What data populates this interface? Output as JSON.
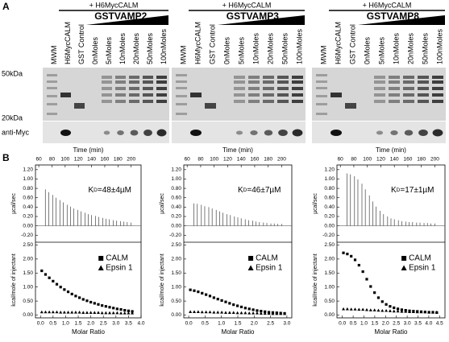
{
  "panel_a": {
    "label": "A",
    "markers": [
      "50kDa",
      "20kDa"
    ],
    "blot_label": "anti-Myc",
    "gels": [
      {
        "treatment": "+ H6MycCALM",
        "protein": "GSTVAMP2",
        "lanes": [
          "MWM",
          "H6MycCALM",
          "GST Control",
          "0nMoles",
          "5nMoles",
          "10nMoles",
          "20nMoles",
          "50nMoles",
          "100nMoles"
        ]
      },
      {
        "treatment": "+ H6MycCALM",
        "protein": "GSTVAMP3",
        "lanes": [
          "MWM",
          "H6MycCALM",
          "GST Control",
          "0nMoles",
          "5nMoles",
          "10nMoles",
          "20nMoles",
          "50nMoles",
          "100nMoles"
        ]
      },
      {
        "treatment": "+ H6MycCALM",
        "protein": "GSTVAMP8",
        "lanes": [
          "MWM",
          "H6MycCALM",
          "GST Control",
          "0nMoles",
          "5nMoles",
          "10nMoles",
          "20nMoles",
          "50nMoles",
          "100nMoles"
        ]
      }
    ]
  },
  "panel_b": {
    "label": "B",
    "plots": [
      {
        "top_axis_label": "Time (min)",
        "time_lim": [
          55,
          215
        ],
        "time_ticks": [
          60,
          80,
          100,
          120,
          140,
          160,
          180,
          200
        ],
        "upper_y_label": "µcal/sec",
        "upper_ylim": [
          -0.35,
          1.3
        ],
        "upper_yticks": [
          {
            "value": 1.2,
            "label": "1.20"
          },
          {
            "value": 1,
            "label": "1.00"
          },
          {
            "value": 0.8,
            "label": "0.80"
          },
          {
            "value": 0.6,
            "label": "0.60"
          },
          {
            "value": 0.4,
            "label": "0.40"
          },
          {
            "value": 0.2,
            "label": "0.20"
          },
          {
            "value": 0,
            "label": "0.00"
          },
          {
            "value": -0.2,
            "label": "-0.20"
          }
        ],
        "kd": {
          "symbol": "K",
          "subscript": "D",
          "value": "=48±4µM"
        },
        "injections": {
          "time": [
            70,
            75,
            81,
            86,
            92,
            97,
            103,
            108,
            113,
            119,
            124,
            130,
            135,
            140,
            146,
            151,
            157,
            162,
            167,
            173,
            178,
            184,
            189,
            194,
            200
          ],
          "heat": [
            0.78,
            0.72,
            0.66,
            0.6,
            0.55,
            0.5,
            0.45,
            0.41,
            0.37,
            0.34,
            0.31,
            0.28,
            0.25,
            0.23,
            0.21,
            0.19,
            0.17,
            0.15,
            0.14,
            0.12,
            0.11,
            0.1,
            0.09,
            0.08,
            0.07
          ]
        },
        "lower_y_label": "kcal/mole of injectant",
        "lower_ylim": [
          -0.1,
          2.6
        ],
        "lower_yticks": [
          {
            "value": 2.5,
            "label": "2.50"
          },
          {
            "value": 2,
            "label": "2.00"
          },
          {
            "value": 1.5,
            "label": "1.50"
          },
          {
            "value": 1,
            "label": "1.00"
          },
          {
            "value": 0.5,
            "label": "0.50"
          },
          {
            "value": 0,
            "label": "0.00"
          }
        ],
        "x_label": "Molar Ratio",
        "xlim": [
          -0.2,
          4.0
        ],
        "xticks": [
          {
            "value": 0,
            "label": "0.0"
          },
          0.5,
          {
            "value": 1,
            "label": "1.0"
          },
          1.5,
          {
            "value": 2,
            "label": "2.0"
          },
          2.5,
          {
            "value": 3,
            "label": "3.0"
          },
          3.5,
          {
            "value": 4,
            "label": "4.0"
          }
        ],
        "x": [
          0.05,
          0.2,
          0.35,
          0.5,
          0.65,
          0.8,
          0.95,
          1.1,
          1.25,
          1.4,
          1.55,
          1.7,
          1.85,
          2,
          2.15,
          2.3,
          2.45,
          2.6,
          2.75,
          2.9,
          3.05,
          3.2,
          3.35,
          3.5,
          3.65
        ],
        "series": [
          {
            "name": "CALM",
            "marker": "square",
            "values": [
              1.58,
              1.45,
              1.33,
              1.21,
              1.1,
              1.0,
              0.91,
              0.83,
              0.75,
              0.68,
              0.62,
              0.56,
              0.51,
              0.46,
              0.42,
              0.38,
              0.34,
              0.31,
              0.28,
              0.25,
              0.22,
              0.2,
              0.17,
              0.15,
              0.13
            ]
          },
          {
            "name": "Epsin 1",
            "marker": "triangle",
            "values": [
              0.11,
              0.11,
              0.11,
              0.11,
              0.11,
              0.1,
              0.1,
              0.1,
              0.1,
              0.1,
              0.1,
              0.09,
              0.09,
              0.09,
              0.09,
              0.09,
              0.08,
              0.08,
              0.08,
              0.08,
              0.08,
              0.07,
              0.07,
              0.07,
              0.07
            ]
          }
        ]
      },
      {
        "top_axis_label": "Time (min)",
        "time_lim": [
          55,
          215
        ],
        "time_ticks": [
          60,
          80,
          100,
          120,
          140,
          160,
          180,
          200
        ],
        "upper_y_label": "µcal/sec",
        "upper_ylim": [
          -0.35,
          1.3
        ],
        "upper_yticks": [
          {
            "value": 1.2,
            "label": "1.20"
          },
          {
            "value": 1,
            "label": "1.00"
          },
          {
            "value": 0.8,
            "label": "0.80"
          },
          {
            "value": 0.6,
            "label": "0.60"
          },
          {
            "value": 0.4,
            "label": "0.40"
          },
          {
            "value": 0.2,
            "label": "0.20"
          },
          {
            "value": 0,
            "label": "0.00"
          },
          {
            "value": -0.2,
            "label": "-0.20"
          }
        ],
        "kd": {
          "symbol": "K",
          "subscript": "D",
          "value": "=46±7µM"
        },
        "injections": {
          "time": [
            70,
            75,
            81,
            86,
            92,
            97,
            103,
            108,
            113,
            119,
            124,
            130,
            135,
            140,
            146,
            151,
            157,
            162,
            167,
            173,
            178,
            184,
            189,
            194,
            200
          ],
          "heat": [
            0.48,
            0.47,
            0.45,
            0.42,
            0.4,
            0.37,
            0.34,
            0.31,
            0.28,
            0.25,
            0.23,
            0.2,
            0.18,
            0.16,
            0.14,
            0.12,
            0.11,
            0.09,
            0.08,
            0.07,
            0.06,
            0.05,
            0.05,
            0.04,
            0.04
          ]
        },
        "lower_y_label": "kcal/mole of injectant",
        "lower_ylim": [
          -0.1,
          2.6
        ],
        "lower_yticks": [
          {
            "value": 2.5,
            "label": "2.50"
          },
          {
            "value": 2,
            "label": "2.00"
          },
          {
            "value": 1.5,
            "label": "1.50"
          },
          {
            "value": 1,
            "label": "1.00"
          },
          {
            "value": 0.5,
            "label": "0.50"
          },
          {
            "value": 0,
            "label": "0.00"
          }
        ],
        "x_label": "Molar Ratio",
        "xlim": [
          -0.15,
          3.15
        ],
        "xticks": [
          {
            "value": 0,
            "label": "0.0"
          },
          0.5,
          {
            "value": 1,
            "label": "1.0"
          },
          1.5,
          {
            "value": 2,
            "label": "2.0"
          },
          2.5,
          {
            "value": 3,
            "label": "3.0"
          }
        ],
        "x": [
          0.05,
          0.17,
          0.29,
          0.41,
          0.53,
          0.65,
          0.77,
          0.89,
          1.01,
          1.13,
          1.25,
          1.37,
          1.49,
          1.61,
          1.73,
          1.85,
          1.97,
          2.09,
          2.21,
          2.33,
          2.45,
          2.57,
          2.69,
          2.81,
          2.93
        ],
        "series": [
          {
            "name": "CALM",
            "marker": "square",
            "values": [
              0.9,
              0.87,
              0.83,
              0.78,
              0.73,
              0.68,
              0.62,
              0.57,
              0.52,
              0.47,
              0.42,
              0.37,
              0.33,
              0.29,
              0.25,
              0.22,
              0.19,
              0.16,
              0.14,
              0.12,
              0.1,
              0.09,
              0.08,
              0.07,
              0.06
            ]
          },
          {
            "name": "Epsin 1",
            "marker": "triangle",
            "values": [
              0.12,
              0.12,
              0.12,
              0.11,
              0.11,
              0.11,
              0.1,
              0.1,
              0.1,
              0.09,
              0.09,
              0.09,
              0.08,
              0.08,
              0.08,
              0.07,
              0.07,
              0.07,
              0.06,
              0.06,
              0.06,
              0.05,
              0.05,
              0.05,
              0.05
            ]
          }
        ]
      },
      {
        "top_axis_label": "Time (min)",
        "time_lim": [
          55,
          215
        ],
        "time_ticks": [
          60,
          80,
          100,
          120,
          140,
          160,
          180,
          200
        ],
        "upper_y_label": "µcal/sec",
        "upper_ylim": [
          -0.35,
          1.3
        ],
        "upper_yticks": [
          {
            "value": 1.2,
            "label": "1.20"
          },
          {
            "value": 1,
            "label": "1.00"
          },
          {
            "value": 0.8,
            "label": "0.80"
          },
          {
            "value": 0.6,
            "label": "0.60"
          },
          {
            "value": 0.4,
            "label": "0.40"
          },
          {
            "value": 0.2,
            "label": "0.20"
          },
          {
            "value": 0,
            "label": "0.00"
          },
          {
            "value": -0.2,
            "label": "-0.20"
          }
        ],
        "kd": {
          "symbol": "K",
          "subscript": "D",
          "value": "=17±1µM"
        },
        "injections": {
          "time": [
            70,
            75,
            81,
            86,
            92,
            97,
            103,
            108,
            113,
            119,
            124,
            130,
            135,
            140,
            146,
            151,
            157,
            162,
            167,
            173,
            178,
            184,
            189,
            194,
            200
          ],
          "heat": [
            1.12,
            1.1,
            1.06,
            0.99,
            0.9,
            0.78,
            0.65,
            0.52,
            0.41,
            0.32,
            0.25,
            0.2,
            0.16,
            0.14,
            0.12,
            0.1,
            0.09,
            0.08,
            0.08,
            0.07,
            0.07,
            0.06,
            0.06,
            0.05,
            0.05
          ]
        },
        "lower_y_label": "kcal/mole of injectant",
        "lower_ylim": [
          -0.1,
          2.6
        ],
        "lower_yticks": [
          {
            "value": 2.5,
            "label": "2.50"
          },
          {
            "value": 2,
            "label": "2.00"
          },
          {
            "value": 1.5,
            "label": "1.50"
          },
          {
            "value": 1,
            "label": "1.00"
          },
          {
            "value": 0.5,
            "label": "0.50"
          },
          {
            "value": 0,
            "label": "0.00"
          }
        ],
        "x_label": "Molar Ratio",
        "xlim": [
          -0.25,
          4.75
        ],
        "xticks": [
          {
            "value": 0,
            "label": "0.0"
          },
          0.5,
          {
            "value": 1,
            "label": "1.0"
          },
          1.5,
          {
            "value": 2,
            "label": "2.0"
          },
          2.5,
          {
            "value": 3,
            "label": "3.0"
          },
          3.5,
          {
            "value": 4,
            "label": "4.0"
          },
          4.5
        ],
        "x": [
          0.05,
          0.23,
          0.41,
          0.59,
          0.77,
          0.95,
          1.13,
          1.31,
          1.49,
          1.67,
          1.85,
          2.03,
          2.21,
          2.39,
          2.57,
          2.75,
          2.93,
          3.11,
          3.29,
          3.47,
          3.65,
          3.83,
          4.01,
          4.19,
          4.37
        ],
        "series": [
          {
            "name": "CALM",
            "marker": "square",
            "values": [
              2.22,
              2.18,
              2.1,
              1.97,
              1.78,
              1.55,
              1.28,
              1.02,
              0.8,
              0.62,
              0.48,
              0.38,
              0.31,
              0.26,
              0.22,
              0.19,
              0.17,
              0.15,
              0.14,
              0.13,
              0.12,
              0.11,
              0.1,
              0.1,
              0.09
            ]
          },
          {
            "name": "Epsin 1",
            "marker": "triangle",
            "values": [
              0.22,
              0.22,
              0.21,
              0.21,
              0.2,
              0.2,
              0.19,
              0.18,
              0.18,
              0.17,
              0.16,
              0.16,
              0.15,
              0.14,
              0.14,
              0.13,
              0.13,
              0.12,
              0.12,
              0.11,
              0.11,
              0.11,
              0.1,
              0.1,
              0.1
            ]
          }
        ]
      }
    ]
  }
}
